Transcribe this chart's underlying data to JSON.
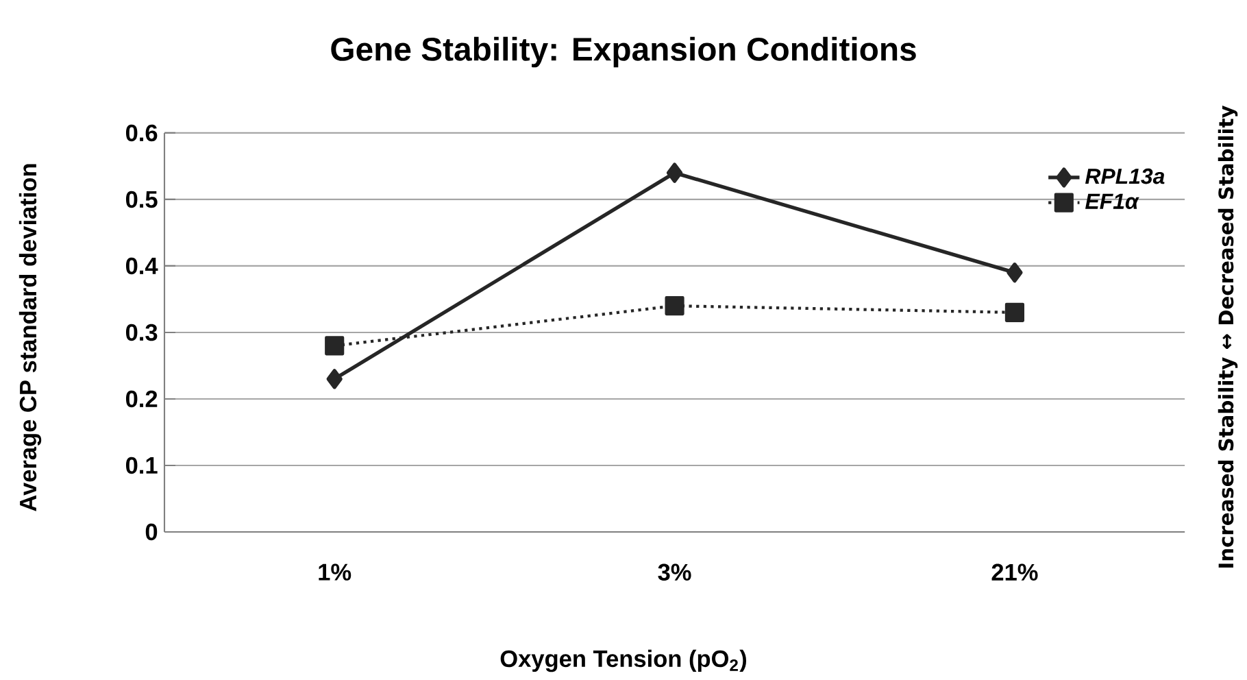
{
  "chart_data": {
    "type": "line",
    "title": "Gene Stability: Expansion Conditions",
    "xlabel": "Oxygen Tension (pO$_{2}$)",
    "ylabel": "Average CP standard deviation",
    "y2label": "Increased Stability ↔ Decreased Stability",
    "categories": [
      "1%",
      "3%",
      "21%"
    ],
    "series": [
      {
        "name": "RPL13a",
        "color": "#262626",
        "values": [
          0.23,
          0.54,
          0.39
        ],
        "marker": "diamond",
        "line_style": "solid"
      },
      {
        "name": "EF1α",
        "color": "#262626",
        "values": [
          0.28,
          0.34,
          0.33
        ],
        "marker": "square",
        "line_style": "dotted"
      }
    ],
    "ylim": [
      0,
      0.6
    ],
    "yticks": [
      0,
      0.1,
      0.2,
      0.3,
      0.4,
      0.5,
      0.6
    ],
    "grid": "y",
    "legend": "top right"
  }
}
